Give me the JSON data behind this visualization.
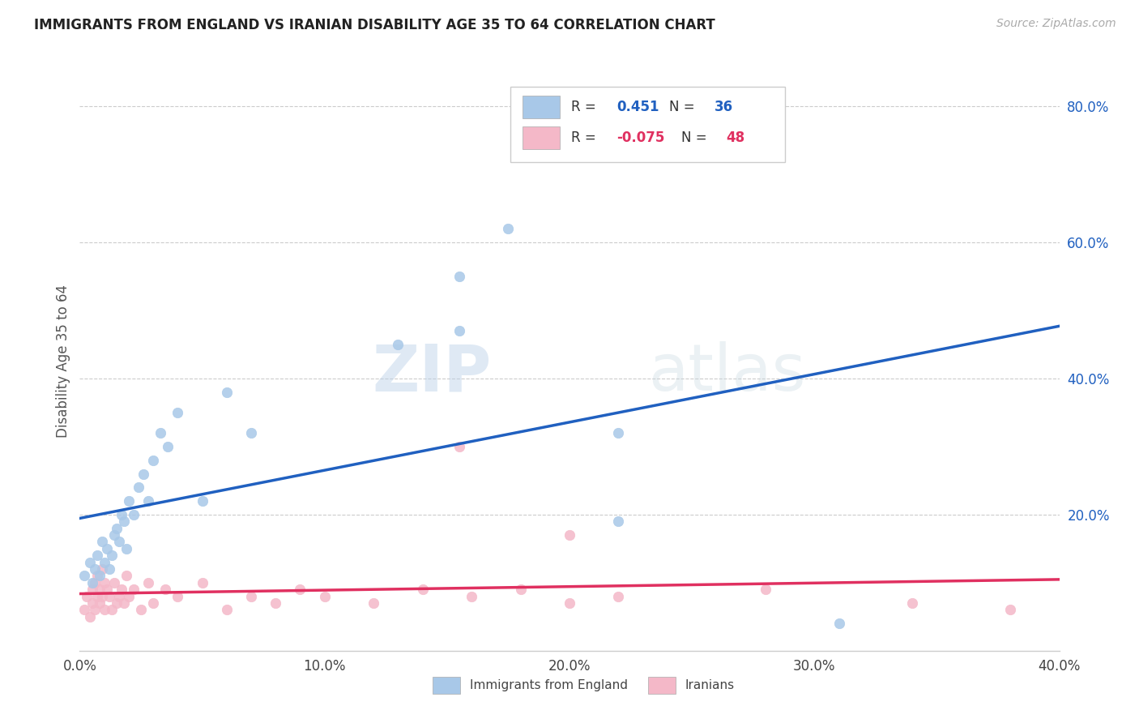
{
  "title": "IMMIGRANTS FROM ENGLAND VS IRANIAN DISABILITY AGE 35 TO 64 CORRELATION CHART",
  "source": "Source: ZipAtlas.com",
  "ylabel": "Disability Age 35 to 64",
  "xlim": [
    0.0,
    0.4
  ],
  "ylim": [
    0.0,
    0.85
  ],
  "xtick_labels": [
    "0.0%",
    "10.0%",
    "20.0%",
    "30.0%",
    "40.0%"
  ],
  "xtick_vals": [
    0.0,
    0.1,
    0.2,
    0.3,
    0.4
  ],
  "ytick_labels": [
    "20.0%",
    "40.0%",
    "60.0%",
    "80.0%"
  ],
  "ytick_vals": [
    0.2,
    0.4,
    0.6,
    0.8
  ],
  "watermark_zip": "ZIP",
  "watermark_atlas": "atlas",
  "england_color": "#a8c8e8",
  "iranian_color": "#f4b8c8",
  "england_line_color": "#2060c0",
  "iranian_line_color": "#e03060",
  "dashed_line_color": "#aaaaaa",
  "england_x": [
    0.002,
    0.004,
    0.005,
    0.006,
    0.007,
    0.008,
    0.009,
    0.01,
    0.011,
    0.012,
    0.013,
    0.014,
    0.015,
    0.016,
    0.017,
    0.018,
    0.019,
    0.02,
    0.022,
    0.024,
    0.026,
    0.028,
    0.03,
    0.033,
    0.036,
    0.04,
    0.05,
    0.06,
    0.07,
    0.13,
    0.155,
    0.175,
    0.22,
    0.155,
    0.31,
    0.22
  ],
  "england_y": [
    0.11,
    0.13,
    0.1,
    0.12,
    0.14,
    0.11,
    0.16,
    0.13,
    0.15,
    0.12,
    0.14,
    0.17,
    0.18,
    0.16,
    0.2,
    0.19,
    0.15,
    0.22,
    0.2,
    0.24,
    0.26,
    0.22,
    0.28,
    0.32,
    0.3,
    0.35,
    0.22,
    0.38,
    0.32,
    0.45,
    0.47,
    0.62,
    0.32,
    0.55,
    0.04,
    0.19
  ],
  "iranian_x": [
    0.002,
    0.003,
    0.004,
    0.005,
    0.005,
    0.006,
    0.006,
    0.007,
    0.007,
    0.008,
    0.008,
    0.009,
    0.009,
    0.01,
    0.01,
    0.011,
    0.012,
    0.013,
    0.014,
    0.015,
    0.016,
    0.017,
    0.018,
    0.019,
    0.02,
    0.022,
    0.025,
    0.028,
    0.03,
    0.035,
    0.04,
    0.05,
    0.06,
    0.07,
    0.08,
    0.09,
    0.1,
    0.12,
    0.14,
    0.155,
    0.16,
    0.18,
    0.2,
    0.2,
    0.22,
    0.28,
    0.34,
    0.38
  ],
  "iranian_y": [
    0.06,
    0.08,
    0.05,
    0.09,
    0.07,
    0.1,
    0.06,
    0.08,
    0.11,
    0.07,
    0.09,
    0.12,
    0.08,
    0.1,
    0.06,
    0.09,
    0.08,
    0.06,
    0.1,
    0.07,
    0.08,
    0.09,
    0.07,
    0.11,
    0.08,
    0.09,
    0.06,
    0.1,
    0.07,
    0.09,
    0.08,
    0.1,
    0.06,
    0.08,
    0.07,
    0.09,
    0.08,
    0.07,
    0.09,
    0.3,
    0.08,
    0.09,
    0.17,
    0.07,
    0.08,
    0.09,
    0.07,
    0.06
  ]
}
